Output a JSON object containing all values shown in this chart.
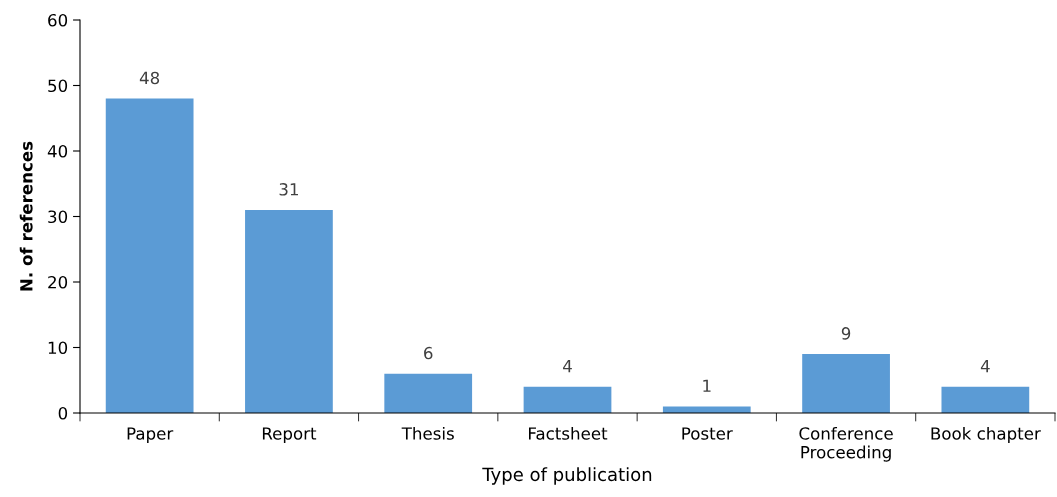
{
  "chart_data": {
    "type": "bar",
    "xlabel": "Type of publication",
    "ylabel": "N. of references",
    "categories": [
      "Paper",
      "Report",
      "Thesis",
      "Factsheet",
      "Poster",
      "Conference\nProceeding",
      "Book chapter"
    ],
    "values": [
      48,
      31,
      6,
      4,
      1,
      9,
      4
    ],
    "color": "#5b9bd5",
    "ylim": [
      0,
      60
    ],
    "yticks": [
      0,
      10,
      20,
      30,
      40,
      50,
      60
    ],
    "grid": false,
    "data_labels": true
  }
}
